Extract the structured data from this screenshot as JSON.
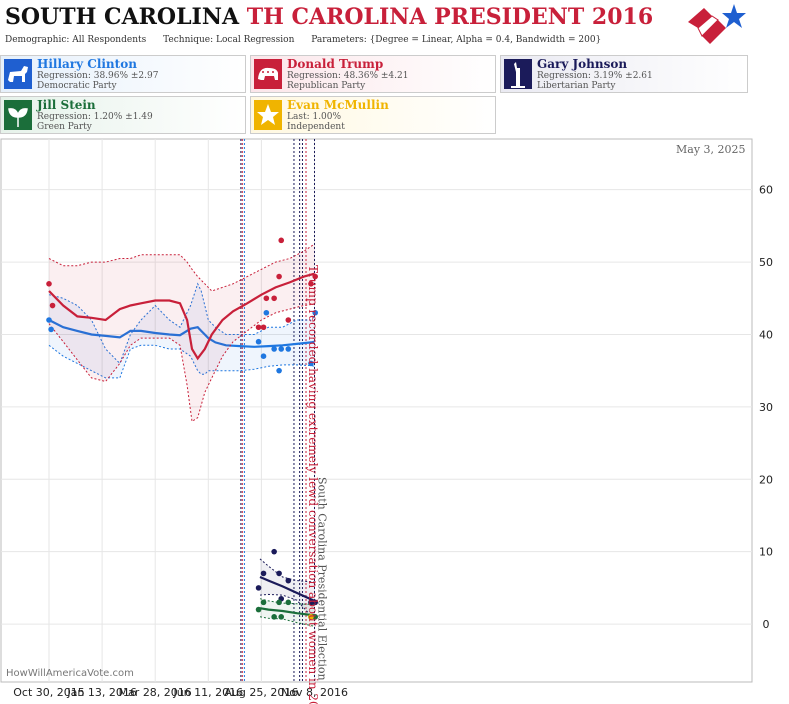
{
  "header": {
    "state": "SOUTH CAROLINA",
    "subtitle": "TH CAROLINA PRESIDENT 2016",
    "demographic": "Demographic: All Respondents",
    "technique": "Technique: Local Regression",
    "parameters": "Parameters: {Degree = Linear, Alpha = 0.4, Bandwidth = 200}"
  },
  "candidates": [
    {
      "name": "Hillary Clinton",
      "line1": "Regression: 38.96% ±2.97",
      "line2": "Democratic Party",
      "color": "#1f77e0",
      "bg": "#e6f0fb",
      "icon": "donkey-icon"
    },
    {
      "name": "Donald Trump",
      "line1": "Regression: 48.36% ±4.21",
      "line2": "Republican Party",
      "color": "#c8203a",
      "bg": "#fbe6ea",
      "icon": "elephant-icon"
    },
    {
      "name": "Gary Johnson",
      "line1": "Regression: 3.19% ±2.61",
      "line2": "Libertarian Party",
      "color": "#1b1b5a",
      "bg": "#eaeaf2",
      "icon": "liberty-icon"
    },
    {
      "name": "Jill Stein",
      "line1": "Regression: 1.20% ±1.49",
      "line2": "Green Party",
      "color": "#1b6e3a",
      "bg": "#e6f2ea",
      "icon": "leaf-icon"
    },
    {
      "name": "Evan McMullin",
      "line1": "Last: 1.00%",
      "line2": "Independent",
      "color": "#f0b400",
      "bg": "#fff8e0",
      "icon": "star-icon"
    }
  ],
  "footer": {
    "credit": "HowWillAmericaVote.com",
    "date": "May 3, 2025"
  },
  "chart_data": {
    "type": "line",
    "x_ticks": [
      "Oct 30, 2015",
      "Jan 13, 2016",
      "Mar 28, 2016",
      "Jun 11, 2016",
      "Aug 25, 2016",
      "Nov 8, 2016"
    ],
    "x_tick_days": [
      0,
      75,
      150,
      225,
      300,
      375
    ],
    "ylim": [
      -8,
      67
    ],
    "y_ticks": [
      0,
      10,
      20,
      30,
      40,
      50,
      60
    ],
    "annotations": [
      {
        "day": 363,
        "text": "Trump recorded having extremely lewd conversation about women in 2005"
      },
      {
        "day": 375,
        "text": "South Carolina Presidential Election"
      }
    ],
    "event_lines": [
      {
        "day": 271,
        "color": "#1b1b5a"
      },
      {
        "day": 273,
        "color": "#c8203a"
      },
      {
        "day": 276,
        "color": "#1f77e0"
      },
      {
        "day": 346,
        "color": "#1b1b5a"
      },
      {
        "day": 354,
        "color": "#1b1b5a"
      },
      {
        "day": 358,
        "color": "#1b1b5a"
      },
      {
        "day": 363,
        "color": "#c8203a"
      },
      {
        "day": 375,
        "color": "#1b1b5a"
      }
    ],
    "series": [
      {
        "name": "Hillary Clinton",
        "color": "#1f77e0",
        "x": [
          0,
          20,
          40,
          60,
          80,
          100,
          115,
          130,
          150,
          170,
          185,
          200,
          210,
          215,
          220,
          225,
          235,
          250,
          270,
          290,
          310,
          330,
          350,
          370,
          375
        ],
        "y": [
          42,
          41,
          40.5,
          40,
          39.8,
          39.6,
          40.5,
          40.5,
          40.2,
          40,
          39.9,
          40.8,
          41,
          40.5,
          40,
          39.5,
          38.9,
          38.5,
          38.4,
          38.3,
          38.4,
          38.5,
          38.7,
          38.9,
          39
        ],
        "hi": [
          45.5,
          45,
          44,
          42,
          38,
          36,
          40,
          42,
          44,
          42,
          41,
          44,
          47,
          46,
          44,
          42,
          41,
          40,
          40,
          40,
          41,
          41,
          42,
          42,
          42.5
        ],
        "lo": [
          38.5,
          37,
          36,
          35,
          34,
          34,
          38,
          38.5,
          38.5,
          38,
          38,
          37,
          35,
          34.5,
          34.5,
          35,
          35,
          35,
          35,
          35.2,
          35.6,
          35.8,
          35.8,
          35.7,
          35.6
        ]
      },
      {
        "name": "Donald Trump",
        "color": "#c8203a",
        "x": [
          0,
          20,
          40,
          60,
          80,
          100,
          115,
          130,
          150,
          170,
          185,
          195,
          202,
          210,
          220,
          230,
          245,
          260,
          280,
          300,
          320,
          340,
          360,
          375
        ],
        "y": [
          46,
          44,
          42.5,
          42.3,
          42,
          43.5,
          44,
          44.3,
          44.7,
          44.7,
          44.3,
          42,
          38,
          36.7,
          38,
          40,
          42,
          43.2,
          44.3,
          45.5,
          46.5,
          47.2,
          48,
          48.4
        ],
        "hi": [
          50.5,
          49.5,
          49.5,
          50,
          50,
          50.5,
          50.5,
          51,
          51,
          51,
          51,
          50,
          49,
          48,
          47,
          46,
          46.5,
          47,
          48,
          49,
          50,
          50.5,
          51.5,
          52.5
        ],
        "lo": [
          41.5,
          39,
          36.5,
          34,
          33.5,
          36,
          38.5,
          39.5,
          39.5,
          39.5,
          38.5,
          33,
          28,
          28.5,
          32,
          34,
          37,
          39,
          40.5,
          42,
          43,
          43.5,
          44,
          44.2
        ]
      },
      {
        "name": "Gary Johnson",
        "color": "#1b1b5a",
        "x": [
          298,
          310,
          330,
          350,
          375
        ],
        "y": [
          6.5,
          6,
          5.2,
          4.3,
          3.2
        ],
        "hi": [
          9,
          8,
          6.5,
          6,
          5.8
        ],
        "lo": [
          4,
          4.1,
          4,
          3.3,
          0.6
        ]
      },
      {
        "name": "Jill Stein",
        "color": "#1b6e3a",
        "x": [
          298,
          310,
          330,
          350,
          375
        ],
        "y": [
          2.2,
          2,
          1.8,
          1.5,
          1.2
        ],
        "hi": [
          3.5,
          3.2,
          2.9,
          2.8,
          2.7
        ],
        "lo": [
          1,
          0.8,
          0.7,
          0.2,
          -0.3
        ]
      }
    ],
    "points": [
      {
        "series": "Hillary Clinton",
        "color": "#1f77e0",
        "x": [
          0,
          3,
          296,
          303,
          307,
          318,
          325,
          328,
          338,
          370,
          376
        ],
        "y": [
          42,
          40.7,
          39,
          37,
          43,
          38,
          35,
          38,
          38,
          36,
          43
        ]
      },
      {
        "series": "Donald Trump",
        "color": "#c8203a",
        "x": [
          0,
          5,
          296,
          303,
          307,
          318,
          325,
          328,
          338,
          370,
          376
        ],
        "y": [
          47,
          44,
          41,
          41,
          45,
          45,
          48,
          53,
          42,
          47,
          48
        ]
      },
      {
        "series": "Gary Johnson",
        "color": "#1b1b5a",
        "x": [
          296,
          303,
          318,
          325,
          328,
          338,
          370,
          376
        ],
        "y": [
          5,
          7,
          10,
          7,
          3.5,
          6,
          3,
          3
        ]
      },
      {
        "series": "Jill Stein",
        "color": "#1b6e3a",
        "x": [
          296,
          303,
          318,
          325,
          328,
          338,
          370,
          376
        ],
        "y": [
          2,
          3,
          1,
          3,
          1,
          3,
          1,
          1
        ]
      },
      {
        "series": "Evan McMullin",
        "color": "#f0b400",
        "x": [
          370
        ],
        "y": [
          1
        ]
      }
    ]
  }
}
